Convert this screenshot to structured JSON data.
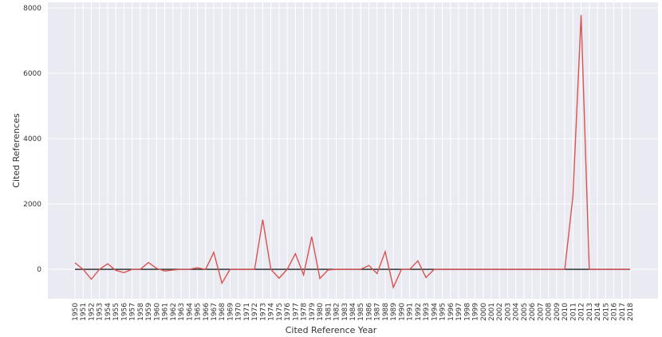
{
  "chart_data": {
    "type": "line",
    "x_label": "Cited Reference Year",
    "y_label": "Cited References",
    "categories": [
      "1950",
      "1951",
      "1952",
      "1953",
      "1954",
      "1955",
      "1956",
      "1957",
      "1958",
      "1959",
      "1960",
      "1961",
      "1962",
      "1963",
      "1964",
      "1965",
      "1966",
      "1967",
      "1968",
      "1969",
      "1970",
      "1971",
      "1972",
      "1973",
      "1974",
      "1975",
      "1976",
      "1977",
      "1978",
      "1979",
      "1980",
      "1981",
      "1982",
      "1983",
      "1984",
      "1985",
      "1986",
      "1987",
      "1988",
      "1989",
      "1990",
      "1991",
      "1992",
      "1993",
      "1994",
      "1995",
      "1996",
      "1997",
      "1998",
      "1999",
      "2000",
      "2001",
      "2002",
      "2003",
      "2004",
      "2005",
      "2006",
      "2007",
      "2008",
      "2009",
      "2010",
      "2011",
      "2012",
      "2013",
      "2014",
      "2015",
      "2016",
      "2017",
      "2018"
    ],
    "series": [
      {
        "color": "#d9534f",
        "values": [
          200,
          0,
          -300,
          0,
          170,
          -30,
          -100,
          0,
          0,
          210,
          30,
          -50,
          -20,
          0,
          0,
          50,
          0,
          520,
          -420,
          0,
          0,
          0,
          0,
          1520,
          0,
          -270,
          0,
          480,
          -170,
          1000,
          -280,
          -20,
          0,
          0,
          0,
          0,
          120,
          -130,
          540,
          -550,
          0,
          0,
          260,
          -250,
          0,
          0,
          0,
          0,
          0,
          0,
          0,
          0,
          0,
          0,
          0,
          0,
          0,
          0,
          0,
          0,
          0,
          2250,
          7780,
          0,
          0,
          0,
          0,
          0,
          0
        ]
      },
      {
        "color": "#222222",
        "values": [
          0,
          0,
          0,
          0,
          0,
          0,
          0,
          0,
          0,
          0,
          0,
          0,
          0,
          0,
          0,
          0,
          0,
          0,
          0,
          0,
          0,
          0,
          0,
          0,
          0,
          0,
          0,
          0,
          0,
          0,
          0,
          0,
          0,
          0,
          0,
          0,
          0,
          0,
          0,
          0,
          0,
          0,
          0,
          0,
          0,
          0,
          0,
          0,
          0,
          0,
          0,
          0,
          0,
          0,
          0,
          0,
          0,
          0,
          0,
          0,
          0,
          0,
          0,
          0,
          0,
          0,
          0,
          0,
          0
        ]
      }
    ],
    "ylim": [
      -900,
      8170
    ],
    "yticks": [
      0,
      2000,
      4000,
      6000,
      8000
    ],
    "grid": true,
    "background": "#eaeaf2"
  }
}
